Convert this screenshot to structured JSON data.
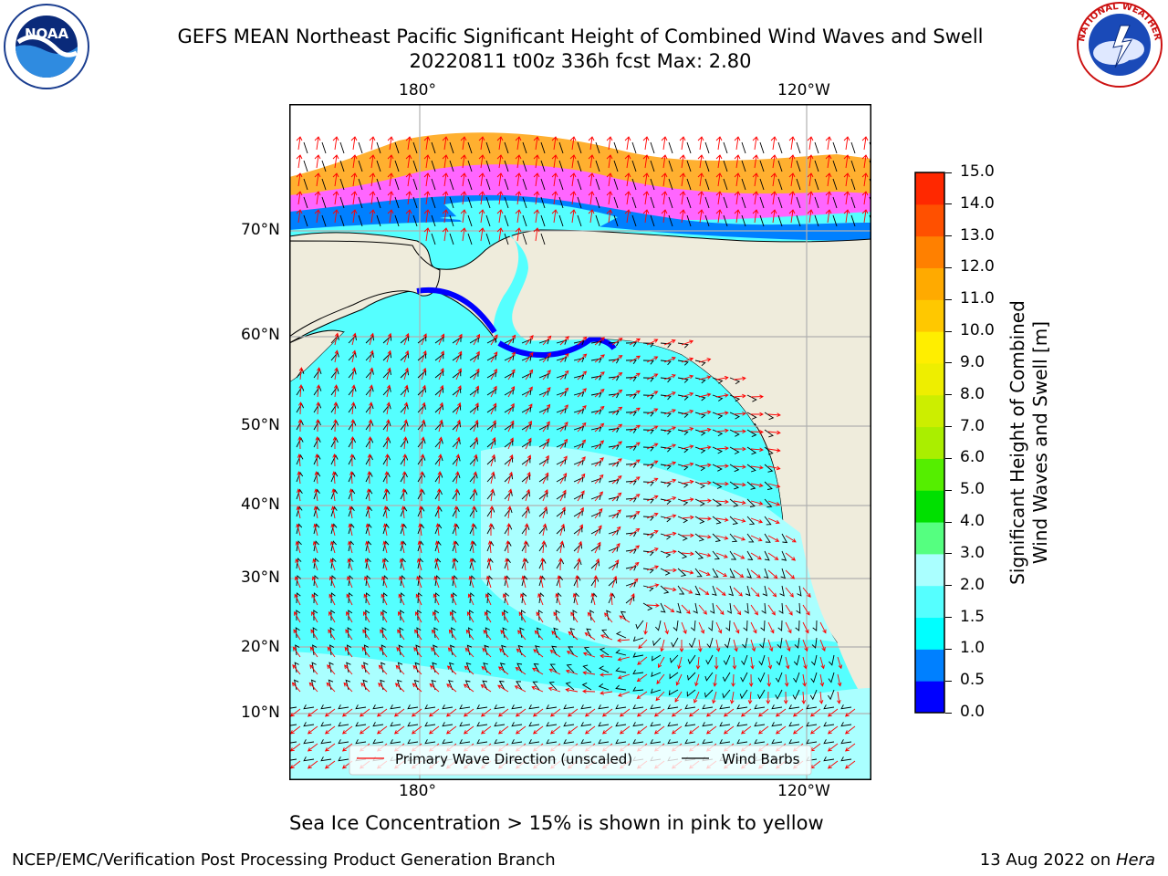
{
  "header": {
    "title_line1": "GEFS MEAN Northeast Pacific Significant Height of Combined Wind Waves and Swell",
    "title_line2": "20220811 t00z 336h fcst   Max: 2.80"
  },
  "logos": {
    "left": {
      "name": "noaa-logo",
      "text": "NOAA",
      "ring_text": "NATIONAL OCEANIC AND ATMOSPHERIC ADMINISTRATION · U.S. DEPARTMENT OF COMMERCE"
    },
    "right": {
      "name": "nws-logo",
      "ring_text": "NATIONAL WEATHER SERVICE"
    }
  },
  "map": {
    "lon_labels": [
      "180°",
      "120°W"
    ],
    "lat_labels": [
      "70°N",
      "60°N",
      "50°N",
      "40°N",
      "30°N",
      "20°N",
      "10°N"
    ],
    "legend": {
      "wave": "Primary Wave Direction (unscaled)",
      "wind": "Wind Barbs",
      "wave_color": "#ff0000",
      "wind_color": "#000000"
    },
    "colors": {
      "land": "#efecdc",
      "ocean_main": "#55ffff",
      "ocean_light": "#aaffff",
      "ocean_coast": "#0080ff",
      "ocean_deep": "#0000ff",
      "ice_pink": "#ff66ff",
      "ice_magenta": "#ff00cc",
      "ice_orange": "#ffb030",
      "grid": "#b0b0b0"
    }
  },
  "colorbar": {
    "title_line1": "Significant Height of Combined",
    "title_line2": "Wind Waves and Swell [m]",
    "ticks": [
      "0.0",
      "0.5",
      "1.0",
      "1.5",
      "2.0",
      "3.0",
      "4.0",
      "5.0",
      "6.0",
      "7.0",
      "8.0",
      "9.0",
      "10.0",
      "11.0",
      "12.0",
      "13.0",
      "14.0",
      "15.0"
    ],
    "colors": [
      "#0000ff",
      "#0080ff",
      "#00ffff",
      "#55ffff",
      "#aaffff",
      "#55ff80",
      "#00e000",
      "#55ee00",
      "#aaee00",
      "#ccee00",
      "#eeee00",
      "#ffee00",
      "#ffc800",
      "#ffaa00",
      "#ff8000",
      "#ff5000",
      "#ff2800",
      "#ff0000"
    ]
  },
  "note": "Sea Ice Concentration > 15% is shown in pink to yellow",
  "footer": {
    "left": "NCEP/EMC/Verification Post Processing Product Generation Branch",
    "right_date": "13 Aug 2022 on ",
    "right_host": "Hera"
  }
}
